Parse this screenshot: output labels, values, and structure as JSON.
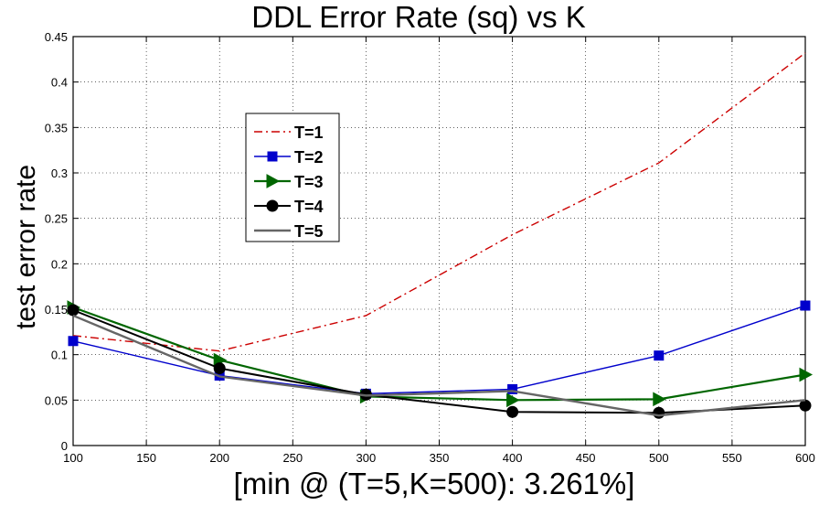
{
  "chart_data": {
    "type": "line",
    "title": "DDL Error Rate (sq) vs K",
    "xlabel": "[min @ (T=5,K=500): 3.261%]",
    "ylabel": "test error rate",
    "x": [
      100,
      200,
      300,
      400,
      500,
      600
    ],
    "xlim": [
      100,
      600
    ],
    "ylim": [
      0,
      0.45
    ],
    "xticks": [
      "100",
      "150",
      "200",
      "250",
      "300",
      "350",
      "400",
      "450",
      "500",
      "550",
      "600"
    ],
    "yticks": [
      "0",
      "0.05",
      "0.1",
      "0.15",
      "0.2",
      "0.25",
      "0.3",
      "0.35",
      "0.4",
      "0.45"
    ],
    "grid": true,
    "legend_position": "upper-left",
    "series": [
      {
        "name": "T=1",
        "color": "#cc0000",
        "marker": "none",
        "dash": "dashdot",
        "values": [
          0.121,
          0.104,
          0.143,
          0.232,
          0.311,
          0.432
        ]
      },
      {
        "name": "T=2",
        "color": "#0000cc",
        "marker": "square",
        "dash": "solid",
        "values": [
          0.115,
          0.077,
          0.057,
          0.062,
          0.099,
          0.154
        ]
      },
      {
        "name": "T=3",
        "color": "#006600",
        "marker": "triangle-right",
        "dash": "solid",
        "values": [
          0.152,
          0.094,
          0.054,
          0.05,
          0.051,
          0.078
        ]
      },
      {
        "name": "T=4",
        "color": "#000000",
        "marker": "circle",
        "dash": "solid",
        "values": [
          0.149,
          0.085,
          0.056,
          0.037,
          0.036,
          0.044
        ]
      },
      {
        "name": "T=5",
        "color": "#666666",
        "marker": "none",
        "dash": "solid",
        "values": [
          0.143,
          0.076,
          0.055,
          0.06,
          0.033,
          0.05
        ]
      }
    ]
  }
}
